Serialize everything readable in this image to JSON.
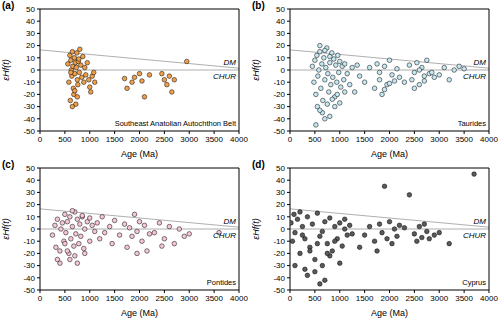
{
  "chart_data": [
    {
      "type": "scatter",
      "title": "(a)",
      "annotation": "Southeast Anatolian Autochthon Belt",
      "x_label": "Age (Ma)",
      "y_label": "εHf(t)",
      "xlim": [
        0,
        4000
      ],
      "ylim": [
        -50,
        50
      ],
      "xticks": [
        0,
        500,
        1000,
        1500,
        2000,
        2500,
        3000,
        3500,
        4000
      ],
      "yticks": [
        -50,
        -40,
        -30,
        -20,
        -10,
        0,
        10,
        20,
        30,
        40,
        50
      ],
      "marker": "circle",
      "lines": [
        {
          "name": "DM",
          "x": [
            0,
            4000
          ],
          "values": [
            16.5,
            1.5
          ]
        },
        {
          "name": "CHUR",
          "x": [
            0,
            4000
          ],
          "values": [
            0,
            0
          ]
        }
      ],
      "series": [
        {
          "color": "#f0a04b",
          "x": [
            560,
            580,
            600,
            610,
            620,
            630,
            640,
            650,
            660,
            670,
            680,
            690,
            700,
            710,
            720,
            730,
            740,
            750,
            760,
            770,
            780,
            790,
            800,
            820,
            840,
            860,
            880,
            900,
            920,
            950,
            980,
            1000,
            1020,
            1050,
            1080,
            1100,
            620,
            700,
            650,
            750,
            1700,
            1750,
            1850,
            1900,
            2000,
            2050,
            2100,
            2200,
            2450,
            2500,
            2550,
            2600,
            2650,
            2700,
            2950
          ],
          "values": [
            5,
            -10,
            12,
            -25,
            8,
            0,
            -5,
            15,
            3,
            -15,
            -20,
            10,
            -3,
            6,
            -28,
            2,
            14,
            -8,
            -12,
            7,
            9,
            -2,
            17,
            4,
            -6,
            11,
            -10,
            2,
            -4,
            6,
            -8,
            -14,
            -18,
            -5,
            -2,
            -10,
            -2,
            -17,
            -30,
            -22,
            -7,
            -15,
            -10,
            -6,
            -3,
            -9,
            -22,
            -4,
            -3,
            -8,
            -12,
            -5,
            -18,
            -8,
            7
          ]
        }
      ]
    },
    {
      "type": "scatter",
      "title": "(b)",
      "annotation": "Taurides",
      "x_label": "Age (Ma)",
      "y_label": "εHf(t)",
      "xlim": [
        0,
        4000
      ],
      "ylim": [
        -50,
        50
      ],
      "xticks": [
        0,
        500,
        1000,
        1500,
        2000,
        2500,
        3000,
        3500,
        4000
      ],
      "yticks": [
        -50,
        -40,
        -30,
        -20,
        -10,
        0,
        10,
        20,
        30,
        40,
        50
      ],
      "marker": "circle",
      "lines": [
        {
          "name": "DM",
          "x": [
            0,
            4000
          ],
          "values": [
            16.5,
            1.5
          ]
        },
        {
          "name": "CHUR",
          "x": [
            0,
            4000
          ],
          "values": [
            0,
            0
          ]
        }
      ],
      "series": [
        {
          "color": "#c5e8f2",
          "x": [
            450,
            480,
            500,
            520,
            540,
            560,
            580,
            600,
            620,
            640,
            660,
            680,
            700,
            720,
            740,
            760,
            780,
            800,
            820,
            840,
            860,
            880,
            900,
            920,
            940,
            960,
            980,
            1000,
            1020,
            1050,
            1080,
            1100,
            1150,
            1200,
            1250,
            550,
            650,
            750,
            850,
            950,
            520,
            600,
            700,
            800,
            900,
            1000,
            1100,
            600,
            700,
            800,
            1400,
            1500,
            1600,
            1700,
            1750,
            1800,
            1850,
            1900,
            1950,
            2000,
            2050,
            2100,
            2150,
            2200,
            1800,
            1900,
            2000,
            2400,
            2450,
            2500,
            2550,
            2600,
            2650,
            2700,
            2750,
            2800,
            2500,
            2600,
            2700,
            2850,
            3000,
            3100,
            3200,
            3300,
            3400,
            1300,
            1350,
            2300,
            2900,
            3500
          ],
          "values": [
            3,
            -10,
            8,
            -20,
            12,
            -5,
            0,
            15,
            -15,
            5,
            -25,
            10,
            -8,
            2,
            18,
            -3,
            -18,
            6,
            -12,
            14,
            -6,
            9,
            -22,
            4,
            -10,
            12,
            -2,
            7,
            -14,
            3,
            -8,
            5,
            -3,
            -12,
            2,
            -30,
            -35,
            -28,
            -24,
            -20,
            -45,
            -33,
            -40,
            -38,
            -30,
            -27,
            -18,
            20,
            16,
            11,
            -5,
            -10,
            2,
            -15,
            5,
            -8,
            -20,
            3,
            -12,
            8,
            -4,
            -9,
            1,
            -6,
            -2,
            -16,
            -11,
            4,
            -8,
            -2,
            6,
            -12,
            2,
            -5,
            8,
            -3,
            -15,
            0,
            -9,
            -2,
            -4,
            2,
            -8,
            0,
            3,
            -18,
            4,
            -10,
            -6,
            1
          ]
        }
      ]
    },
    {
      "type": "scatter",
      "title": "(c)",
      "annotation": "Pontides",
      "x_label": "Age (Ma)",
      "y_label": "εHf(t)",
      "xlim": [
        0,
        4000
      ],
      "ylim": [
        -50,
        50
      ],
      "xticks": [
        0,
        500,
        1000,
        1500,
        2000,
        2500,
        3000,
        3500,
        4000
      ],
      "yticks": [
        -50,
        -40,
        -30,
        -20,
        -10,
        0,
        10,
        20,
        30,
        40,
        50
      ],
      "marker": "circle",
      "lines": [
        {
          "name": "DM",
          "x": [
            0,
            4000
          ],
          "values": [
            16.5,
            1.5
          ]
        },
        {
          "name": "CHUR",
          "x": [
            0,
            4000
          ],
          "values": [
            0,
            0
          ]
        }
      ],
      "series": [
        {
          "color": "#f5c6d8",
          "x": [
            250,
            300,
            320,
            350,
            400,
            420,
            450,
            480,
            500,
            520,
            550,
            580,
            600,
            620,
            650,
            680,
            700,
            720,
            750,
            780,
            800,
            820,
            850,
            880,
            900,
            950,
            1000,
            1050,
            1100,
            600,
            1150,
            1200,
            1250,
            1300,
            1400,
            1450,
            1500,
            1600,
            1700,
            1750,
            1800,
            1850,
            1900,
            1950,
            2000,
            2050,
            2100,
            2150,
            2200,
            1950,
            2300,
            2400,
            2500,
            2600,
            2700,
            2800,
            2900,
            3000,
            2450,
            3600,
            400,
            700,
            900,
            500,
            650,
            850,
            1000,
            350,
            550,
            750
          ],
          "values": [
            -5,
            3,
            -15,
            8,
            -28,
            0,
            5,
            -10,
            12,
            -3,
            6,
            -20,
            10,
            -8,
            2,
            -14,
            14,
            -4,
            8,
            -12,
            4,
            -6,
            10,
            -16,
            0,
            6,
            -10,
            3,
            -2,
            -25,
            5,
            -8,
            10,
            -3,
            2,
            -12,
            7,
            -5,
            4,
            -15,
            1,
            -6,
            12,
            -2,
            6,
            -10,
            3,
            -18,
            -4,
            -20,
            -3,
            5,
            -8,
            2,
            -12,
            0,
            -6,
            -4,
            -14,
            -3,
            -18,
            -22,
            -20,
            -12,
            15,
            11,
            9,
            -25,
            -18,
            -28
          ]
        }
      ]
    },
    {
      "type": "scatter",
      "title": "(d)",
      "annotation": "Cyprus",
      "x_label": "Age (Ma)",
      "y_label": "εHf(t)",
      "xlim": [
        0,
        4000
      ],
      "ylim": [
        -50,
        50
      ],
      "xticks": [
        0,
        500,
        1000,
        1500,
        2000,
        2500,
        3000,
        3500,
        4000
      ],
      "yticks": [
        -50,
        -40,
        -30,
        -20,
        -10,
        0,
        10,
        20,
        30,
        40,
        50
      ],
      "marker": "circle",
      "lines": [
        {
          "name": "DM",
          "x": [
            0,
            4000
          ],
          "values": [
            16.5,
            1.5
          ]
        },
        {
          "name": "CHUR",
          "x": [
            0,
            4000
          ],
          "values": [
            0,
            0
          ]
        }
      ],
      "series": [
        {
          "color": "#5a5a5a",
          "x": [
            20,
            50,
            80,
            100,
            150,
            200,
            250,
            300,
            350,
            400,
            450,
            500,
            550,
            600,
            650,
            700,
            750,
            800,
            850,
            900,
            950,
            1000,
            1050,
            1100,
            1150,
            1200,
            100,
            300,
            500,
            700,
            600,
            800,
            1000,
            200,
            400,
            650,
            900,
            1100,
            250,
            550,
            1500,
            1600,
            1700,
            1800,
            1850,
            1900,
            1950,
            2000,
            2050,
            2100,
            2150,
            2200,
            2400,
            2500,
            2550,
            2600,
            2650,
            2700,
            2750,
            2800,
            3000,
            3200,
            3700,
            1250,
            1400,
            2300,
            1750,
            2900,
            350,
            750
          ],
          "values": [
            5,
            -10,
            12,
            -3,
            8,
            -20,
            2,
            -8,
            10,
            -15,
            4,
            -25,
            13,
            -6,
            -30,
            6,
            -12,
            9,
            -18,
            2,
            -8,
            5,
            -14,
            0,
            -5,
            3,
            -30,
            -33,
            -35,
            -42,
            -45,
            -22,
            -28,
            14,
            -18,
            -2,
            -10,
            8,
            -5,
            -12,
            -5,
            2,
            -10,
            4,
            -3,
            35,
            -8,
            6,
            -12,
            0,
            -6,
            3,
            28,
            -4,
            -10,
            2,
            -7,
            4,
            -2,
            -8,
            -3,
            -12,
            45,
            -4,
            -15,
            1,
            -18,
            -5,
            -38,
            -20
          ]
        }
      ]
    }
  ]
}
